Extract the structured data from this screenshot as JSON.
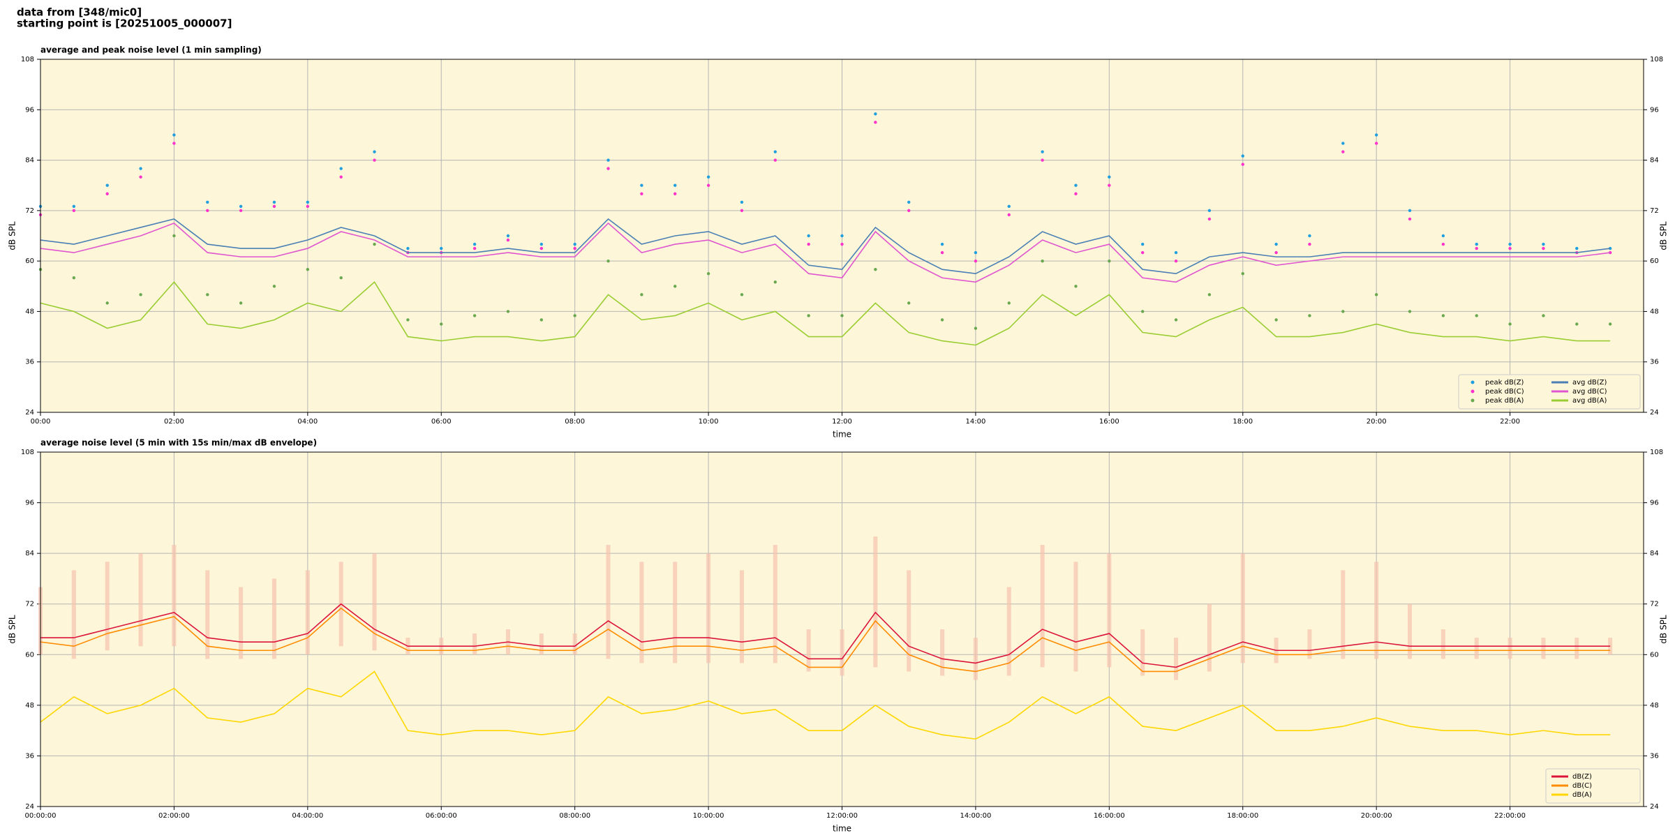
{
  "header": [
    "data from [348/mic0]",
    "starting point is [20251005_000007]"
  ],
  "chart_data": [
    {
      "type": "line",
      "title": "average and peak noise level (1 min sampling)",
      "xlabel": "time",
      "ylabel": "dB SPL",
      "xlim": [
        0,
        24
      ],
      "xticks": [
        {
          "value": 0,
          "label": "00:00"
        },
        {
          "value": 2,
          "label": "02:00"
        },
        {
          "value": 4,
          "label": "04:00"
        },
        {
          "value": 6,
          "label": "06:00"
        },
        {
          "value": 8,
          "label": "08:00"
        },
        {
          "value": 10,
          "label": "10:00"
        },
        {
          "value": 12,
          "label": "12:00"
        },
        {
          "value": 14,
          "label": "14:00"
        },
        {
          "value": 16,
          "label": "16:00"
        },
        {
          "value": 18,
          "label": "18:00"
        },
        {
          "value": 20,
          "label": "20:00"
        },
        {
          "value": 22,
          "label": "22:00"
        }
      ],
      "ylim": [
        24,
        108
      ],
      "yticks": [
        24,
        36,
        48,
        60,
        72,
        84,
        96,
        108
      ],
      "grid": true,
      "legend": "lower right",
      "legend_columns": 2,
      "x": [
        0,
        0.5,
        1,
        1.5,
        2,
        2.5,
        3,
        3.5,
        4,
        4.5,
        5,
        5.5,
        6,
        6.5,
        7,
        7.5,
        8,
        8.5,
        9,
        9.5,
        10,
        10.5,
        11,
        11.5,
        12,
        12.5,
        13,
        13.5,
        14,
        14.5,
        15,
        15.5,
        16,
        16.5,
        17,
        17.5,
        18,
        18.5,
        19,
        19.5,
        20,
        20.5,
        21,
        21.5,
        22,
        22.5,
        23,
        23.5
      ],
      "series": [
        {
          "name": "peak dB(Z)",
          "type": "scatter",
          "color": "#1f9fe0",
          "values": [
            73,
            73,
            78,
            82,
            90,
            74,
            73,
            74,
            74,
            82,
            86,
            63,
            63,
            64,
            66,
            64,
            64,
            84,
            78,
            78,
            80,
            74,
            86,
            66,
            66,
            95,
            74,
            64,
            62,
            73,
            86,
            78,
            80,
            64,
            62,
            72,
            85,
            64,
            66,
            88,
            90,
            72,
            66,
            64,
            64,
            64,
            63,
            63
          ]
        },
        {
          "name": "peak dB(C)",
          "type": "scatter",
          "color": "#ff33cc",
          "values": [
            71,
            72,
            76,
            80,
            88,
            72,
            72,
            73,
            73,
            80,
            84,
            62,
            62,
            63,
            65,
            63,
            63,
            82,
            76,
            76,
            78,
            72,
            84,
            64,
            64,
            93,
            72,
            62,
            60,
            71,
            84,
            76,
            78,
            62,
            60,
            70,
            83,
            62,
            64,
            86,
            88,
            70,
            64,
            63,
            63,
            63,
            62,
            62
          ]
        },
        {
          "name": "peak dB(A)",
          "type": "scatter",
          "color": "#6aa84f",
          "values": [
            58,
            56,
            50,
            52,
            66,
            52,
            50,
            54,
            58,
            56,
            64,
            46,
            45,
            47,
            48,
            46,
            47,
            60,
            52,
            54,
            57,
            52,
            55,
            47,
            47,
            58,
            50,
            46,
            44,
            50,
            60,
            54,
            60,
            48,
            46,
            52,
            57,
            46,
            47,
            48,
            52,
            48,
            47,
            47,
            45,
            47,
            45,
            45
          ]
        },
        {
          "name": "avg dB(Z)",
          "type": "line",
          "color": "#4a7fb5",
          "values": [
            65,
            64,
            66,
            68,
            70,
            64,
            63,
            63,
            65,
            68,
            66,
            62,
            62,
            62,
            63,
            62,
            62,
            70,
            64,
            66,
            67,
            64,
            66,
            59,
            58,
            68,
            62,
            58,
            57,
            61,
            67,
            64,
            66,
            58,
            57,
            61,
            62,
            61,
            61,
            62,
            62,
            62,
            62,
            62,
            62,
            62,
            62,
            63
          ]
        },
        {
          "name": "avg dB(C)",
          "type": "line",
          "color": "#e055d0",
          "values": [
            63,
            62,
            64,
            66,
            69,
            62,
            61,
            61,
            63,
            67,
            65,
            61,
            61,
            61,
            62,
            61,
            61,
            69,
            62,
            64,
            65,
            62,
            64,
            57,
            56,
            67,
            60,
            56,
            55,
            59,
            65,
            62,
            64,
            56,
            55,
            59,
            61,
            59,
            60,
            61,
            61,
            61,
            61,
            61,
            61,
            61,
            61,
            62
          ]
        },
        {
          "name": "avg dB(A)",
          "type": "line",
          "color": "#9acd32",
          "values": [
            50,
            48,
            44,
            46,
            55,
            45,
            44,
            46,
            50,
            48,
            55,
            42,
            41,
            42,
            42,
            41,
            42,
            52,
            46,
            47,
            50,
            46,
            48,
            42,
            42,
            50,
            43,
            41,
            40,
            44,
            52,
            47,
            52,
            43,
            42,
            46,
            49,
            42,
            42,
            43,
            45,
            43,
            42,
            42,
            41,
            42,
            41,
            41
          ]
        }
      ]
    },
    {
      "type": "line",
      "title": "average noise level (5 min with 15s min/max dB envelope)",
      "xlabel": "time",
      "ylabel": "dB SPL",
      "xlim": [
        0,
        24
      ],
      "xticks": [
        {
          "value": 0,
          "label": "00:00:00"
        },
        {
          "value": 2,
          "label": "02:00:00"
        },
        {
          "value": 4,
          "label": "04:00:00"
        },
        {
          "value": 6,
          "label": "06:00:00"
        },
        {
          "value": 8,
          "label": "08:00:00"
        },
        {
          "value": 10,
          "label": "10:00:00"
        },
        {
          "value": 12,
          "label": "12:00:00"
        },
        {
          "value": 14,
          "label": "14:00:00"
        },
        {
          "value": 16,
          "label": "16:00:00"
        },
        {
          "value": 18,
          "label": "18:00:00"
        },
        {
          "value": 20,
          "label": "20:00:00"
        },
        {
          "value": 22,
          "label": "22:00:00"
        }
      ],
      "ylim": [
        24,
        108
      ],
      "yticks": [
        24,
        36,
        48,
        60,
        72,
        84,
        96,
        108
      ],
      "grid": true,
      "legend": "lower right",
      "legend_columns": 1,
      "x": [
        0,
        0.5,
        1,
        1.5,
        2,
        2.5,
        3,
        3.5,
        4,
        4.5,
        5,
        5.5,
        6,
        6.5,
        7,
        7.5,
        8,
        8.5,
        9,
        9.5,
        10,
        10.5,
        11,
        11.5,
        12,
        12.5,
        13,
        13.5,
        14,
        14.5,
        15,
        15.5,
        16,
        16.5,
        17,
        17.5,
        18,
        18.5,
        19,
        19.5,
        20,
        20.5,
        21,
        21.5,
        22,
        22.5,
        23,
        23.5
      ],
      "envelope": {
        "color": "#f5c3ae",
        "min": [
          60,
          59,
          61,
          62,
          62,
          59,
          59,
          59,
          60,
          62,
          61,
          60,
          60,
          60,
          60,
          60,
          60,
          59,
          58,
          58,
          58,
          58,
          58,
          56,
          55,
          57,
          56,
          55,
          54,
          55,
          57,
          56,
          57,
          55,
          54,
          56,
          58,
          58,
          59,
          59,
          59,
          59,
          59,
          59,
          59,
          59,
          59,
          60
        ],
        "max": [
          76,
          80,
          82,
          84,
          86,
          80,
          76,
          78,
          80,
          82,
          84,
          64,
          64,
          65,
          66,
          65,
          65,
          86,
          82,
          82,
          84,
          80,
          86,
          66,
          66,
          88,
          80,
          66,
          64,
          76,
          86,
          82,
          84,
          66,
          64,
          72,
          84,
          64,
          66,
          80,
          82,
          72,
          66,
          64,
          64,
          64,
          64,
          64
        ]
      },
      "series": [
        {
          "name": "dB(Z)",
          "type": "line",
          "color": "#dc143c",
          "values": [
            64,
            64,
            66,
            68,
            70,
            64,
            63,
            63,
            65,
            72,
            66,
            62,
            62,
            62,
            63,
            62,
            62,
            68,
            63,
            64,
            64,
            63,
            64,
            59,
            59,
            70,
            62,
            59,
            58,
            60,
            66,
            63,
            65,
            58,
            57,
            60,
            63,
            61,
            61,
            62,
            63,
            62,
            62,
            62,
            62,
            62,
            62,
            62
          ]
        },
        {
          "name": "dB(C)",
          "type": "line",
          "color": "#ff8c00",
          "values": [
            63,
            62,
            65,
            67,
            69,
            62,
            61,
            61,
            64,
            71,
            65,
            61,
            61,
            61,
            62,
            61,
            61,
            66,
            61,
            62,
            62,
            61,
            62,
            57,
            57,
            68,
            60,
            57,
            56,
            58,
            64,
            61,
            63,
            56,
            56,
            59,
            62,
            60,
            60,
            61,
            61,
            61,
            61,
            61,
            61,
            61,
            61,
            61
          ]
        },
        {
          "name": "dB(A)",
          "type": "line",
          "color": "#ffd700",
          "values": [
            44,
            50,
            46,
            48,
            52,
            45,
            44,
            46,
            52,
            50,
            56,
            42,
            41,
            42,
            42,
            41,
            42,
            50,
            46,
            47,
            49,
            46,
            47,
            42,
            42,
            48,
            43,
            41,
            40,
            44,
            50,
            46,
            50,
            43,
            42,
            45,
            48,
            42,
            42,
            43,
            45,
            43,
            42,
            42,
            41,
            42,
            41,
            41
          ]
        }
      ]
    }
  ]
}
